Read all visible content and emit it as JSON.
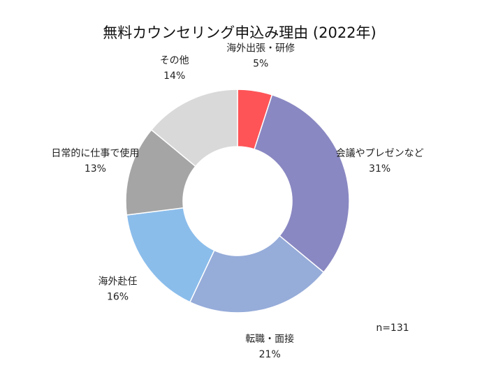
{
  "chart_data": {
    "type": "pie",
    "donut": true,
    "title": "無料カウンセリング申込み理由 (2022年)",
    "note": "n=131",
    "unit": "%",
    "start_angle_deg": 0,
    "direction": "clockwise",
    "legend": "none",
    "slices": [
      {
        "label": "海外出張・研修",
        "value": 5,
        "display": "5%",
        "color": "#fe5457"
      },
      {
        "label": "会議やプレゼンなど",
        "value": 31,
        "display": "31%",
        "color": "#8a88c2"
      },
      {
        "label": "転職・面接",
        "value": 21,
        "display": "21%",
        "color": "#96acd9"
      },
      {
        "label": "海外赴任",
        "value": 16,
        "display": "16%",
        "color": "#8bbdeb"
      },
      {
        "label": "日常的に仕事で使用",
        "value": 13,
        "display": "13%",
        "color": "#a5a5a5"
      },
      {
        "label": "その他",
        "value": 14,
        "display": "14%",
        "color": "#d9d9d9"
      }
    ]
  }
}
